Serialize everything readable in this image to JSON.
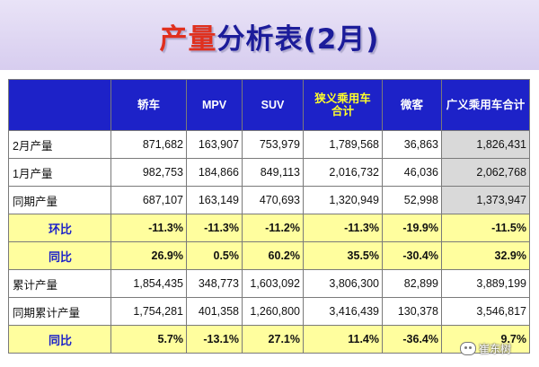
{
  "title": {
    "red_part": "产量",
    "blue_part": "分析表(2月)"
  },
  "columns": [
    "轿车",
    "MPV",
    "SUV",
    "狭义乘用车合计",
    "微客",
    "广义乘用车合计"
  ],
  "colors": {
    "header_bg": "#1d22c8",
    "ratio_bg": "#fffe9e",
    "negative": "#0a9a2a",
    "positive": "#d11a1a",
    "total_bg": "#d9d9d9"
  },
  "rows": [
    {
      "label": "2月产量",
      "cells": [
        "871,682",
        "163,907",
        "753,979",
        "1,789,568",
        "36,863",
        "1,826,431"
      ]
    },
    {
      "label": "1月产量",
      "cells": [
        "982,753",
        "184,866",
        "849,113",
        "2,016,732",
        "46,036",
        "2,062,768"
      ]
    },
    {
      "label": "同期产量",
      "cells": [
        "687,107",
        "163,149",
        "470,693",
        "1,320,949",
        "52,998",
        "1,373,947"
      ]
    },
    {
      "label": "环比",
      "cells": [
        "-11.3%",
        "-11.3%",
        "-11.2%",
        "-11.3%",
        "-19.9%",
        "-11.5%"
      ]
    },
    {
      "label": "同比",
      "cells": [
        "26.9%",
        "0.5%",
        "60.2%",
        "35.5%",
        "-30.4%",
        "32.9%"
      ]
    },
    {
      "label": "累计产量",
      "cells": [
        "1,854,435",
        "348,773",
        "1,603,092",
        "3,806,300",
        "82,899",
        "3,889,199"
      ]
    },
    {
      "label": "同期累计产量",
      "cells": [
        "1,754,281",
        "401,358",
        "1,260,800",
        "3,416,439",
        "130,378",
        "3,546,817"
      ]
    },
    {
      "label": "同比",
      "cells": [
        "5.7%",
        "-13.1%",
        "27.1%",
        "11.4%",
        "-36.4%",
        "9.7%"
      ]
    }
  ],
  "watermark": "崔东树"
}
